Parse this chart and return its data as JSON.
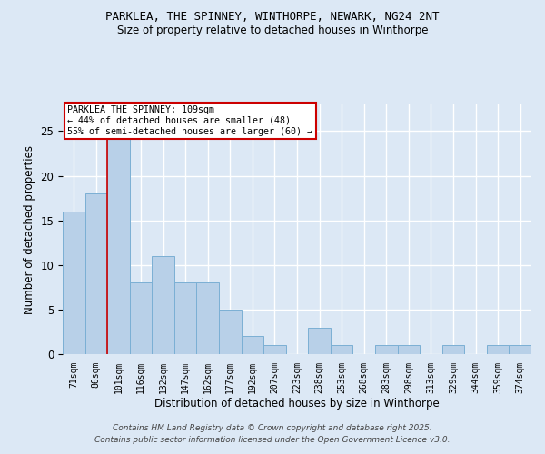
{
  "title1": "PARKLEA, THE SPINNEY, WINTHORPE, NEWARK, NG24 2NT",
  "title2": "Size of property relative to detached houses in Winthorpe",
  "xlabel": "Distribution of detached houses by size in Winthorpe",
  "ylabel": "Number of detached properties",
  "bar_labels": [
    "71sqm",
    "86sqm",
    "101sqm",
    "116sqm",
    "132sqm",
    "147sqm",
    "162sqm",
    "177sqm",
    "192sqm",
    "207sqm",
    "223sqm",
    "238sqm",
    "253sqm",
    "268sqm",
    "283sqm",
    "298sqm",
    "313sqm",
    "329sqm",
    "344sqm",
    "359sqm",
    "374sqm"
  ],
  "bar_values": [
    16,
    18,
    25,
    8,
    11,
    8,
    8,
    5,
    2,
    1,
    0,
    3,
    1,
    0,
    1,
    1,
    0,
    1,
    0,
    1,
    1
  ],
  "bar_color": "#b8d0e8",
  "bar_edge_color": "#7bafd4",
  "background_color": "#dce8f5",
  "grid_color": "#ffffff",
  "vline_color": "#cc0000",
  "vline_pos": 2.5,
  "annotation_title": "PARKLEA THE SPINNEY: 109sqm",
  "annotation_line2": "← 44% of detached houses are smaller (48)",
  "annotation_line3": "55% of semi-detached houses are larger (60) →",
  "annotation_box_color": "#ffffff",
  "annotation_box_edge": "#cc0000",
  "ylim": [
    0,
    28
  ],
  "yticks": [
    0,
    5,
    10,
    15,
    20,
    25
  ],
  "footnote1": "Contains HM Land Registry data © Crown copyright and database right 2025.",
  "footnote2": "Contains public sector information licensed under the Open Government Licence v3.0."
}
